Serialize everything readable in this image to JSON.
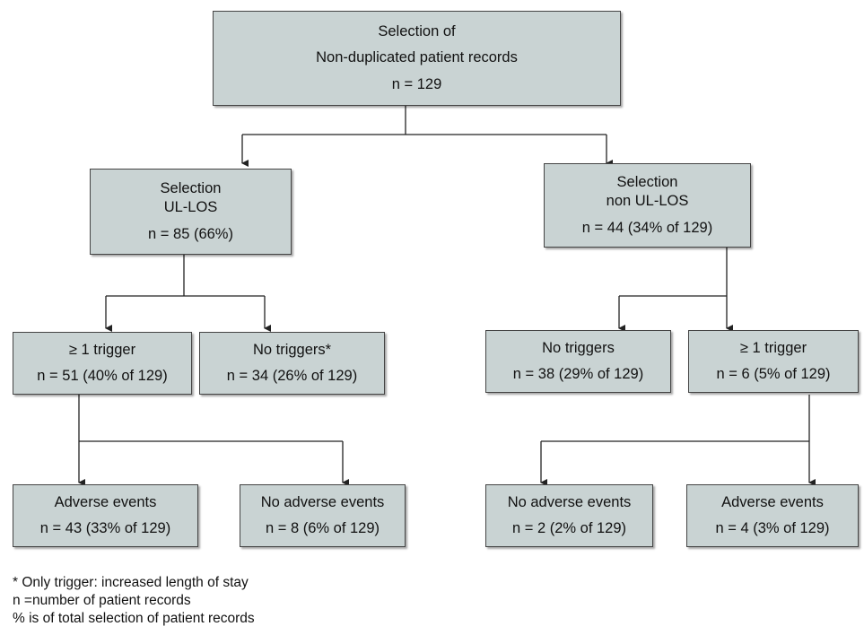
{
  "root": {
    "line1": "Selection of",
    "line2": "Non-duplicated patient records",
    "line3": "n = 129"
  },
  "ul_los": {
    "line1": "Selection",
    "line2": "UL-LOS",
    "line3": "n = 85 (66%)",
    "trigger": {
      "line1": "≥ 1 trigger",
      "line2": "n = 51 (40% of 129)"
    },
    "no_triggers": {
      "line1": "No triggers*",
      "line2": "n = 34 (26% of 129)"
    },
    "adverse": {
      "line1": "Adverse events",
      "line2": "n = 43 (33% of 129)"
    },
    "no_adverse": {
      "line1": "No adverse events",
      "line2": "n = 8 (6% of 129)"
    }
  },
  "non_ul_los": {
    "line1": "Selection",
    "line2": "non UL-LOS",
    "line3": "n = 44 (34% of 129)",
    "no_triggers": {
      "line1": "No triggers",
      "line2": "n = 38 (29% of 129)"
    },
    "trigger": {
      "line1": "≥ 1 trigger",
      "line2": "n = 6 (5% of 129)"
    },
    "no_adverse": {
      "line1": "No adverse events",
      "line2": "n = 2 (2% of 129)"
    },
    "adverse": {
      "line1": "Adverse events",
      "line2": "n = 4 (3% of 129)"
    }
  },
  "footnotes": {
    "note1": "* Only trigger: increased length of stay",
    "note2": "n =number of patient records",
    "note3": "% is of total selection of patient records"
  },
  "colors": {
    "box_fill": "#c9d3d3",
    "box_border": "#444444",
    "line": "#222222"
  }
}
